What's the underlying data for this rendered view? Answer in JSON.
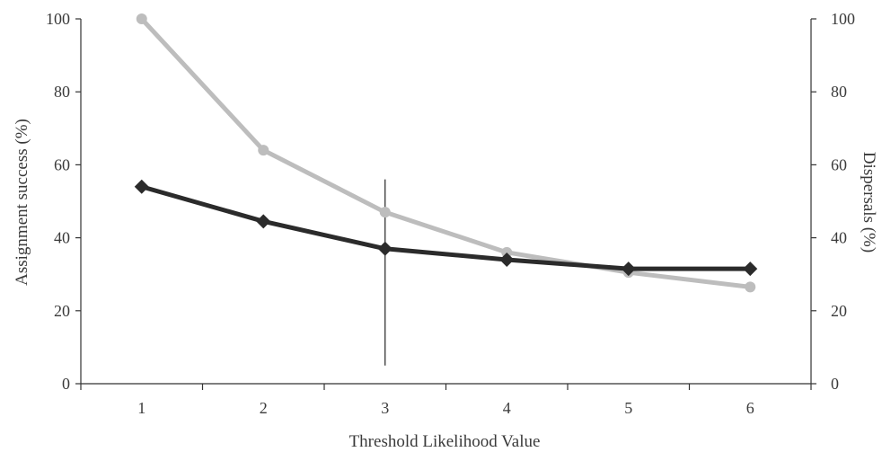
{
  "chart_data": {
    "type": "line",
    "x": [
      1,
      2,
      3,
      4,
      5,
      6
    ],
    "x_tick_labels": [
      "1",
      "2",
      "3",
      "4",
      "5",
      "6"
    ],
    "xlim": [
      0.5,
      6.5
    ],
    "xlabel": "Threshold Likelihood Value",
    "ylabel_left": "Assignment success (%)",
    "ylabel_right": "Dispersals (%)",
    "ylim_left": [
      0,
      100
    ],
    "ylim_right": [
      0,
      100
    ],
    "y_tick_labels_left": [
      "0",
      "20",
      "40",
      "60",
      "80",
      "100"
    ],
    "y_tick_labels_right": [
      "0",
      "20",
      "40",
      "60",
      "80",
      "100"
    ],
    "grid": false,
    "series": [
      {
        "axis": "left",
        "marker": "diamond",
        "color": "#2b2b2b",
        "values": [
          54,
          44.5,
          37,
          34,
          31.5,
          31.5
        ]
      },
      {
        "axis": "right",
        "marker": "circle",
        "color": "#bdbdbd",
        "values": [
          100,
          64,
          47,
          36,
          30.5,
          26.5
        ]
      }
    ],
    "reference_line": {
      "x": 3,
      "y_from": 5,
      "y_to": 56,
      "color": "#333333"
    }
  }
}
